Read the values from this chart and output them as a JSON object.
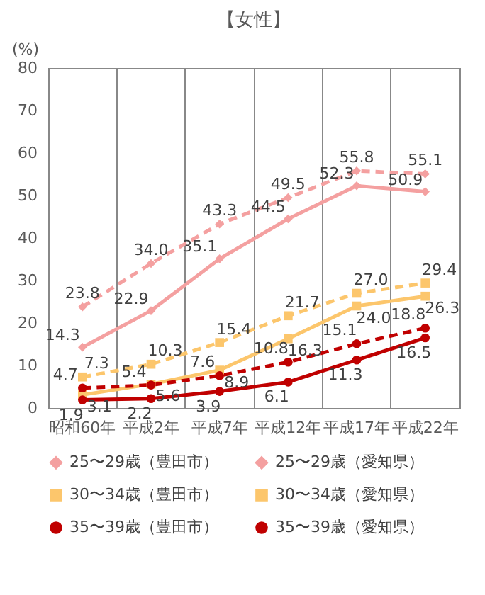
{
  "chart_data": {
    "type": "line",
    "title": "【女性】",
    "ylabel": "(%)",
    "categories": [
      "昭和60年",
      "平成2年",
      "平成7年",
      "平成12年",
      "平成17年",
      "平成22年"
    ],
    "series": [
      {
        "name": "25〜29歳（豊田市）",
        "color": "#f4a0a0",
        "marker": "diamond",
        "line_style": "solid",
        "values": [
          14.3,
          22.9,
          35.1,
          44.5,
          52.3,
          50.9
        ],
        "value_labels": [
          "14.3",
          "22.9",
          "35.1",
          "44.5",
          "52.3",
          "50.9"
        ]
      },
      {
        "name": "25〜29歳（愛知県）",
        "color": "#f4a0a0",
        "marker": "diamond",
        "line_style": "dashed",
        "values": [
          23.8,
          34.0,
          43.3,
          49.5,
          55.8,
          55.1
        ],
        "value_labels": [
          "23.8",
          "34.0",
          "43.3",
          "49.5",
          "55.8",
          "55.1"
        ]
      },
      {
        "name": "30〜34歳（豊田市）",
        "color": "#fcc66c",
        "marker": "square",
        "line_style": "solid",
        "values": [
          3.1,
          5.6,
          8.9,
          16.3,
          24.0,
          26.3
        ],
        "value_labels": [
          "3.1",
          "5.6",
          "8.9",
          "16.3",
          "24.0",
          "26.3"
        ]
      },
      {
        "name": "30〜34歳（愛知県）",
        "color": "#fcc66c",
        "marker": "square",
        "line_style": "dashed",
        "values": [
          7.3,
          10.3,
          15.4,
          21.7,
          27.0,
          29.4
        ],
        "value_labels": [
          "7.3",
          "10.3",
          "15.4",
          "21.7",
          "27.0",
          "29.4"
        ]
      },
      {
        "name": "35〜39歳（豊田市）",
        "color": "#c00000",
        "marker": "circle",
        "line_style": "solid",
        "values": [
          1.9,
          2.2,
          3.9,
          6.1,
          11.3,
          16.5
        ],
        "value_labels": [
          "1.9",
          "2.2",
          "3.9",
          "6.1",
          "11.3",
          "16.5"
        ]
      },
      {
        "name": "35〜39歳（愛知県）",
        "color": "#c00000",
        "marker": "circle",
        "line_style": "dashed",
        "values": [
          4.7,
          5.4,
          7.6,
          10.8,
          15.1,
          18.8
        ],
        "value_labels": [
          "4.7",
          "5.4",
          "7.6",
          "10.8",
          "15.1",
          "18.8"
        ]
      }
    ],
    "ylim": [
      0,
      80
    ],
    "yticks": [
      0,
      10,
      20,
      30,
      40,
      50,
      60,
      70,
      80
    ],
    "grid": "x",
    "legend": "bottom"
  }
}
